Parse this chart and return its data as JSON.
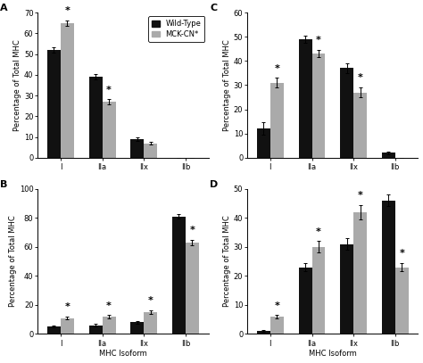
{
  "panels": {
    "A": {
      "label": "A",
      "categories": [
        "I",
        "IIa",
        "IIx",
        "IIb"
      ],
      "wt_values": [
        52,
        39,
        9,
        0
      ],
      "mck_values": [
        65,
        27,
        7,
        0
      ],
      "wt_errors": [
        1.2,
        1.2,
        0.8,
        0
      ],
      "mck_errors": [
        1.2,
        1.2,
        0.7,
        0
      ],
      "star_above_mck": [
        true,
        true,
        false,
        false
      ],
      "star_above_wt": [
        false,
        false,
        false,
        false
      ],
      "ylim": [
        0,
        70
      ],
      "yticks": [
        0,
        10,
        20,
        30,
        40,
        50,
        60,
        70
      ],
      "ylabel": "Percentage of Total MHC",
      "xlabel": "",
      "show_legend": true
    },
    "B": {
      "label": "B",
      "categories": [
        "I",
        "IIa",
        "IIx",
        "IIb"
      ],
      "wt_values": [
        5,
        6,
        8,
        81
      ],
      "mck_values": [
        11,
        12,
        15,
        63
      ],
      "wt_errors": [
        0.5,
        0.8,
        1.0,
        1.5
      ],
      "mck_errors": [
        1.0,
        1.0,
        1.5,
        2.0
      ],
      "star_above_mck": [
        true,
        true,
        true,
        true
      ],
      "star_above_wt": [
        false,
        false,
        false,
        false
      ],
      "ylim": [
        0,
        100
      ],
      "yticks": [
        0,
        20,
        40,
        60,
        80,
        100
      ],
      "ylabel": "Percentage of Total MHC",
      "xlabel": "MHC Isoform",
      "show_legend": false
    },
    "C": {
      "label": "C",
      "categories": [
        "I",
        "IIa",
        "IIx",
        "IIb"
      ],
      "wt_values": [
        12,
        49,
        37,
        2
      ],
      "mck_values": [
        31,
        43,
        27,
        0
      ],
      "wt_errors": [
        2.5,
        1.5,
        2.0,
        0.5
      ],
      "mck_errors": [
        2.0,
        1.5,
        2.0,
        0
      ],
      "star_above_mck": [
        true,
        true,
        true,
        false
      ],
      "star_above_wt": [
        false,
        false,
        false,
        false
      ],
      "ylim": [
        0,
        60
      ],
      "yticks": [
        0,
        10,
        20,
        30,
        40,
        50,
        60
      ],
      "ylabel": "Percentage of Total MHC",
      "xlabel": "",
      "show_legend": false
    },
    "D": {
      "label": "D",
      "categories": [
        "I",
        "IIa",
        "IIx",
        "IIb"
      ],
      "wt_values": [
        1,
        23,
        31,
        46
      ],
      "mck_values": [
        6,
        30,
        42,
        23
      ],
      "wt_errors": [
        0.3,
        1.5,
        2.0,
        2.0
      ],
      "mck_errors": [
        0.5,
        2.0,
        2.5,
        1.5
      ],
      "star_above_mck": [
        true,
        true,
        true,
        true
      ],
      "star_above_wt": [
        false,
        false,
        false,
        false
      ],
      "ylim": [
        0,
        50
      ],
      "yticks": [
        0,
        10,
        20,
        30,
        40,
        50
      ],
      "ylabel": "Percentage of Total MHC",
      "xlabel": "MHC Isoform",
      "show_legend": false
    }
  },
  "wt_color": "#111111",
  "mck_color": "#aaaaaa",
  "bar_width": 0.32,
  "legend_labels": [
    "Wild-Type",
    "MCK-CN*"
  ],
  "bg_color": "#ffffff",
  "font_size": 6,
  "label_font_size": 8,
  "star_font_size": 8,
  "tick_font_size": 6
}
